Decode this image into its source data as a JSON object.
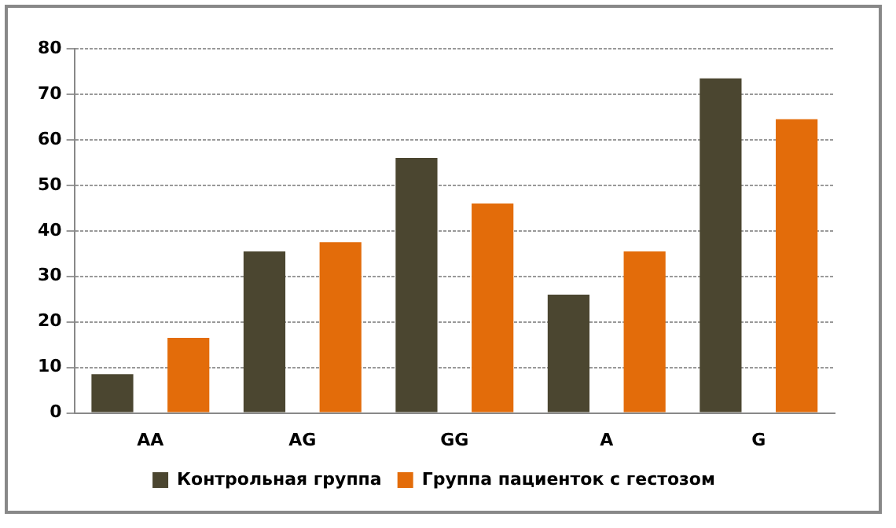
{
  "chart_data": {
    "type": "bar",
    "categories": [
      "AA",
      "AG",
      "GG",
      "A",
      "G"
    ],
    "series": [
      {
        "name": "Контрольная группа",
        "color": "#4b4630",
        "values": [
          8.5,
          35.5,
          56,
          26,
          73.5
        ]
      },
      {
        "name": "Группа пациенток с гестозом",
        "color": "#e36c0a",
        "values": [
          16.5,
          37.5,
          46,
          35.5,
          64.5
        ]
      }
    ],
    "ylim": [
      0,
      80
    ],
    "yticks": [
      0,
      10,
      20,
      30,
      40,
      50,
      60,
      70,
      80
    ],
    "grid": "y",
    "legend": "bottom"
  }
}
